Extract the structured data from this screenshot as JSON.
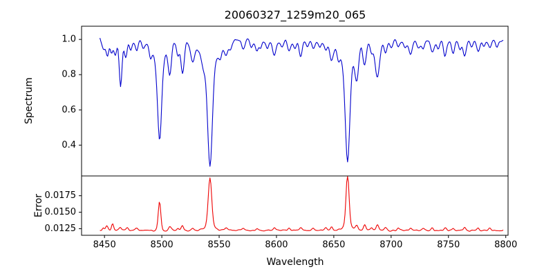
{
  "chart_data": {
    "type": "line",
    "title": "20060327_1259m20_065",
    "xlabel": "Wavelength",
    "legend": "none",
    "grid": false,
    "x_axis": {
      "range": [
        8430,
        8802
      ],
      "tick_values": [
        8450,
        8500,
        8550,
        8600,
        8650,
        8700,
        8750,
        8800
      ],
      "tick_labels": [
        "8450",
        "8500",
        "8550",
        "8600",
        "8650",
        "8700",
        "8750",
        "8800"
      ]
    },
    "series_x": {
      "start": 8446,
      "end": 8798,
      "step": 0.75
    },
    "panels": [
      {
        "name": "spectrum",
        "ylabel": "Spectrum",
        "y_range": [
          0.225,
          1.075
        ],
        "y_tick_values": [
          0.4,
          0.6,
          0.8,
          1.0
        ],
        "y_tick_labels": [
          "0.4",
          "0.6",
          "0.8",
          "1.0"
        ],
        "color": "#0000cc",
        "mode": "absorption",
        "baseline": 0.995,
        "noise_amp": 0.016,
        "noise_seed": 12345,
        "features": [
          [
            8449,
            0.05,
            1.2
          ],
          [
            8452.5,
            0.1,
            1.2
          ],
          [
            8456,
            0.08,
            1.1
          ],
          [
            8459.5,
            0.09,
            1.2
          ],
          [
            8464,
            0.26,
            1.2
          ],
          [
            8468.5,
            0.09,
            1.3
          ],
          [
            8473,
            0.05,
            1.2
          ],
          [
            8478,
            0.06,
            1.3
          ],
          [
            8484,
            0.04,
            1.2
          ],
          [
            8490,
            0.05,
            1.2
          ],
          [
            8498,
            0.44,
            1.7
          ],
          [
            8498,
            0.13,
            5.5
          ],
          [
            8507,
            0.17,
            1.4
          ],
          [
            8514,
            0.09,
            1.2
          ],
          [
            8518,
            0.19,
            1.5
          ],
          [
            8527,
            0.11,
            1.8
          ],
          [
            8536,
            0.06,
            1.4
          ],
          [
            8542,
            0.56,
            2.0
          ],
          [
            8542,
            0.15,
            7.0
          ],
          [
            8551,
            0.05,
            1.3
          ],
          [
            8556,
            0.07,
            1.4
          ],
          [
            8560,
            0.04,
            1.2
          ],
          [
            8571,
            0.05,
            1.3
          ],
          [
            8578,
            0.04,
            1.2
          ],
          [
            8583,
            0.06,
            1.3
          ],
          [
            8586,
            0.05,
            1.2
          ],
          [
            8592,
            0.04,
            1.2
          ],
          [
            8598,
            0.09,
            1.4
          ],
          [
            8605,
            0.04,
            1.2
          ],
          [
            8611,
            0.06,
            1.3
          ],
          [
            8616,
            0.04,
            1.2
          ],
          [
            8621,
            0.09,
            1.4
          ],
          [
            8627,
            0.04,
            1.2
          ],
          [
            8632,
            0.05,
            1.3
          ],
          [
            8638,
            0.04,
            1.2
          ],
          [
            8643,
            0.06,
            1.3
          ],
          [
            8648,
            0.11,
            1.5
          ],
          [
            8654,
            0.05,
            1.2
          ],
          [
            8662,
            0.54,
            1.9
          ],
          [
            8662,
            0.15,
            6.5
          ],
          [
            8670,
            0.17,
            1.5
          ],
          [
            8677,
            0.13,
            1.5
          ],
          [
            8683,
            0.07,
            1.3
          ],
          [
            8688,
            0.21,
            1.9
          ],
          [
            8695,
            0.07,
            1.4
          ],
          [
            8700,
            0.05,
            1.3
          ],
          [
            8706,
            0.04,
            1.2
          ],
          [
            8712,
            0.05,
            1.3
          ],
          [
            8717,
            0.08,
            1.4
          ],
          [
            8724,
            0.04,
            1.2
          ],
          [
            8728,
            0.05,
            1.3
          ],
          [
            8736,
            0.07,
            1.4
          ],
          [
            8741,
            0.05,
            1.2
          ],
          [
            8747,
            0.09,
            1.4
          ],
          [
            8754,
            0.07,
            1.3
          ],
          [
            8760,
            0.05,
            1.2
          ],
          [
            8764,
            0.09,
            1.4
          ],
          [
            8770,
            0.04,
            1.2
          ],
          [
            8776,
            0.07,
            1.3
          ],
          [
            8781,
            0.04,
            1.2
          ],
          [
            8786,
            0.05,
            1.3
          ],
          [
            8792,
            0.04,
            1.2
          ]
        ]
      },
      {
        "name": "error",
        "ylabel": "Error",
        "y_range": [
          0.0115,
          0.0205
        ],
        "y_tick_values": [
          0.0125,
          0.015,
          0.0175
        ],
        "y_tick_labels": [
          "0.0125",
          "0.0150",
          "0.0175"
        ],
        "color": "#ee0000",
        "mode": "emission",
        "baseline": 0.01225,
        "noise_amp": 0.00018,
        "noise_seed": 54321,
        "features": [
          [
            8449,
            0.0004,
            0.8
          ],
          [
            8452,
            0.0006,
            1.0
          ],
          [
            8457,
            0.0011,
            0.9
          ],
          [
            8464,
            0.0005,
            1.0
          ],
          [
            8470,
            0.0004,
            1.0
          ],
          [
            8478,
            0.0003,
            0.9
          ],
          [
            8498,
            0.0044,
            1.1
          ],
          [
            8507,
            0.0006,
            1.0
          ],
          [
            8514,
            0.0004,
            0.9
          ],
          [
            8518,
            0.0007,
            1.0
          ],
          [
            8527,
            0.0004,
            1.1
          ],
          [
            8542,
            0.0071,
            1.5
          ],
          [
            8542,
            0.0008,
            4.0
          ],
          [
            8556,
            0.0004,
            1.0
          ],
          [
            8571,
            0.0003,
            0.9
          ],
          [
            8583,
            0.0003,
            0.9
          ],
          [
            8598,
            0.0004,
            1.0
          ],
          [
            8611,
            0.0003,
            0.9
          ],
          [
            8621,
            0.0004,
            1.0
          ],
          [
            8632,
            0.0003,
            0.9
          ],
          [
            8643,
            0.0003,
            0.9
          ],
          [
            8648,
            0.0005,
            1.0
          ],
          [
            8662,
            0.0077,
            1.3
          ],
          [
            8662,
            0.0008,
            4.0
          ],
          [
            8670,
            0.0007,
            1.0
          ],
          [
            8677,
            0.0008,
            1.0
          ],
          [
            8683,
            0.0004,
            0.9
          ],
          [
            8688,
            0.0009,
            1.1
          ],
          [
            8695,
            0.0004,
            1.0
          ],
          [
            8706,
            0.0003,
            0.9
          ],
          [
            8717,
            0.0004,
            1.0
          ],
          [
            8728,
            0.0003,
            0.9
          ],
          [
            8736,
            0.0004,
            0.9
          ],
          [
            8747,
            0.0004,
            1.0
          ],
          [
            8754,
            0.0003,
            0.9
          ],
          [
            8764,
            0.0005,
            1.0
          ],
          [
            8776,
            0.0004,
            0.9
          ],
          [
            8786,
            0.0004,
            1.0
          ]
        ]
      }
    ]
  }
}
